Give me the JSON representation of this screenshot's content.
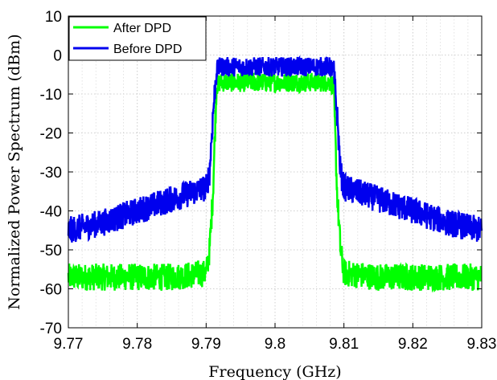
{
  "chart_data": {
    "type": "line",
    "title": "",
    "xlabel": "Frequency (GHz)",
    "ylabel": "Normalized Power Spectrum (dBm)",
    "xlim": [
      9.77,
      9.83
    ],
    "ylim": [
      -70,
      10
    ],
    "xticks": [
      9.77,
      9.78,
      9.79,
      9.8,
      9.81,
      9.82,
      9.83
    ],
    "xtick_labels": [
      "9.77",
      "9.78",
      "9.79",
      "9.8",
      "9.81",
      "9.82",
      "9.83"
    ],
    "yticks": [
      10,
      0,
      -10,
      -20,
      -30,
      -40,
      -50,
      -60,
      -70
    ],
    "ytick_labels": [
      "10",
      "0",
      "-10",
      "-20",
      "-30",
      "-40",
      "-50",
      "-60",
      "-70"
    ],
    "grid": true,
    "minor_grid": true,
    "legend_position": "top-left",
    "series": [
      {
        "name": "After DPD",
        "color": "#00ff00",
        "x": [
          9.77,
          9.775,
          9.78,
          9.785,
          9.79,
          9.7905,
          9.791,
          9.7915,
          9.792,
          9.795,
          9.8,
          9.805,
          9.808,
          9.8085,
          9.809,
          9.8095,
          9.81,
          9.815,
          9.82,
          9.825,
          9.83
        ],
        "y": [
          -57,
          -57,
          -57,
          -57,
          -56,
          -50,
          -35,
          -8,
          -7,
          -7,
          -7,
          -7,
          -7,
          -8,
          -35,
          -50,
          -56,
          -57,
          -57,
          -57,
          -57
        ]
      },
      {
        "name": "Before DPD",
        "color": "#0000ee",
        "x": [
          9.77,
          9.775,
          9.78,
          9.785,
          9.79,
          9.7905,
          9.791,
          9.7915,
          9.792,
          9.795,
          9.8,
          9.805,
          9.808,
          9.8085,
          9.809,
          9.8095,
          9.81,
          9.815,
          9.82,
          9.825,
          9.83
        ],
        "y": [
          -45,
          -43,
          -40,
          -37,
          -34,
          -30,
          -15,
          -4,
          -3,
          -3,
          -3,
          -3,
          -3,
          -4,
          -15,
          -30,
          -34,
          -37,
          -40,
          -43,
          -45
        ]
      }
    ]
  }
}
